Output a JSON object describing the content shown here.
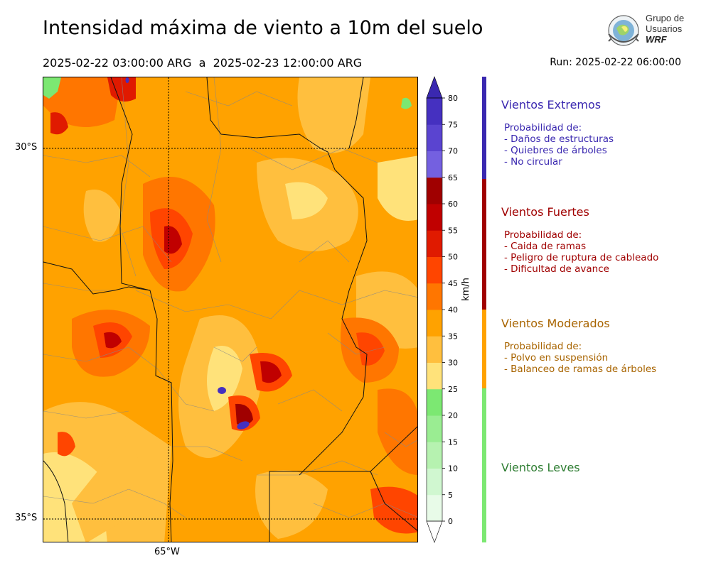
{
  "header": {
    "title": "Intensidad máxima de viento a 10m del suelo",
    "period": "2025-02-22 03:00:00 ARG  a  2025-02-23 12:00:00 ARG",
    "run": "Run: 2025-02-22 06:00:00"
  },
  "logo": {
    "line1": "Grupo de",
    "line2": "Usuarios",
    "line3": "WRF"
  },
  "map": {
    "lat_labels": [
      "30°S",
      "35°S"
    ],
    "lon_labels": [
      "65°W"
    ]
  },
  "colorbar": {
    "unit": "km/h",
    "ticks": [
      "0",
      "5",
      "10",
      "15",
      "20",
      "25",
      "30",
      "35",
      "40",
      "45",
      "50",
      "55",
      "60",
      "65",
      "70",
      "75",
      "80"
    ],
    "colors": [
      "#e8fbe8",
      "#d0f7d0",
      "#b6f2b0",
      "#9aed92",
      "#7ce872",
      "#ffe27a",
      "#ffbf3e",
      "#ffa200",
      "#ff7600",
      "#ff4500",
      "#e01a00",
      "#c00000",
      "#a00000",
      "#7460e0",
      "#5a44d0",
      "#4530c0"
    ]
  },
  "categories": [
    {
      "title": "Vientos Extremos",
      "color": "#3a28b0",
      "lines": [
        "Probabilidad de:",
        "- Daños de estructuras",
        "- Quiebres de árboles",
        "- No circular"
      ]
    },
    {
      "title": "Vientos Fuertes",
      "color": "#a00000",
      "lines": [
        "Probabilidad de:",
        "- Caida de ramas",
        "- Peligro de ruptura de cableado",
        "- Dificultad de avance"
      ]
    },
    {
      "title": "Vientos Moderados",
      "color": "#a86400",
      "lines": [
        "Probabilidad de:",
        "- Polvo en suspensión",
        "- Balanceo de ramas de árboles"
      ]
    },
    {
      "title": "Vientos Leves",
      "color": "#2e7d32",
      "lines": []
    }
  ],
  "bar_colors": [
    "#3a28b0",
    "#a00000",
    "#ffa200",
    "#7ce872"
  ]
}
